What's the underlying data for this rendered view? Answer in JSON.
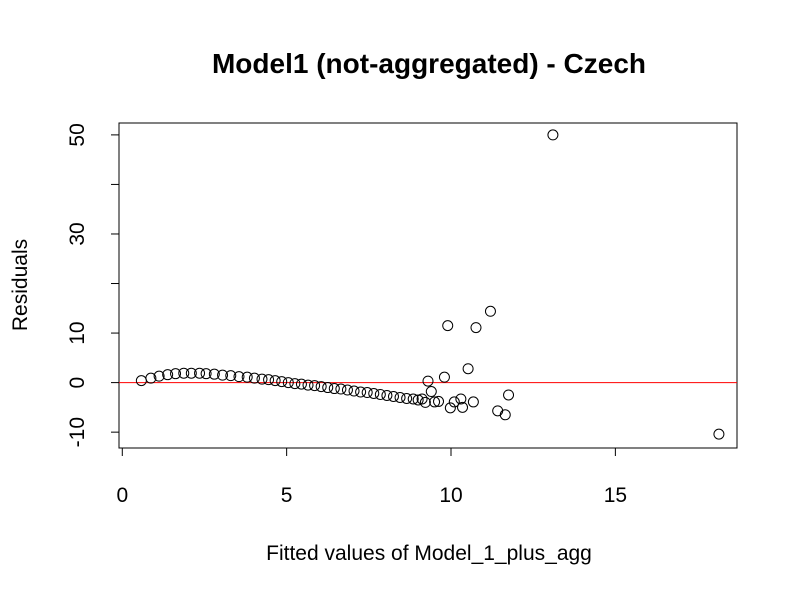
{
  "chart_data": {
    "type": "scatter",
    "title": "Model1 (not-aggregated) - Czech",
    "xlabel": "Fitted values of Model_1_plus_agg",
    "ylabel": "Residuals",
    "xlim": [
      -0.1,
      18.7
    ],
    "ylim": [
      -13.2,
      52.4
    ],
    "x_ticks": [
      0,
      5,
      10,
      15
    ],
    "x_tick_labels": [
      "0",
      "5",
      "10",
      "15"
    ],
    "y_ticks": [
      -10,
      0,
      10,
      20,
      30,
      40,
      50
    ],
    "y_tick_labels": [
      "-10",
      "0",
      "10",
      "",
      "30",
      "",
      "50"
    ],
    "grid": false,
    "reference_line": {
      "y": 0,
      "color": "#ff0000"
    },
    "point_color": "#000000",
    "points": [
      {
        "x": 0.58,
        "y": 0.4
      },
      {
        "x": 0.87,
        "y": 0.9
      },
      {
        "x": 1.12,
        "y": 1.3
      },
      {
        "x": 1.38,
        "y": 1.6
      },
      {
        "x": 1.62,
        "y": 1.8
      },
      {
        "x": 1.87,
        "y": 1.9
      },
      {
        "x": 2.1,
        "y": 1.9
      },
      {
        "x": 2.35,
        "y": 1.9
      },
      {
        "x": 2.55,
        "y": 1.8
      },
      {
        "x": 2.8,
        "y": 1.7
      },
      {
        "x": 3.05,
        "y": 1.5
      },
      {
        "x": 3.3,
        "y": 1.4
      },
      {
        "x": 3.55,
        "y": 1.2
      },
      {
        "x": 3.8,
        "y": 1.1
      },
      {
        "x": 4.02,
        "y": 0.9
      },
      {
        "x": 4.25,
        "y": 0.7
      },
      {
        "x": 4.45,
        "y": 0.6
      },
      {
        "x": 4.65,
        "y": 0.4
      },
      {
        "x": 4.85,
        "y": 0.2
      },
      {
        "x": 5.05,
        "y": 0.0
      },
      {
        "x": 5.25,
        "y": -0.2
      },
      {
        "x": 5.45,
        "y": -0.3
      },
      {
        "x": 5.65,
        "y": -0.5
      },
      {
        "x": 5.85,
        "y": -0.6
      },
      {
        "x": 6.05,
        "y": -0.8
      },
      {
        "x": 6.25,
        "y": -1.0
      },
      {
        "x": 6.45,
        "y": -1.2
      },
      {
        "x": 6.65,
        "y": -1.3
      },
      {
        "x": 6.85,
        "y": -1.5
      },
      {
        "x": 7.05,
        "y": -1.7
      },
      {
        "x": 7.25,
        "y": -1.9
      },
      {
        "x": 7.45,
        "y": -2.0
      },
      {
        "x": 7.65,
        "y": -2.2
      },
      {
        "x": 7.85,
        "y": -2.4
      },
      {
        "x": 8.05,
        "y": -2.6
      },
      {
        "x": 8.25,
        "y": -2.8
      },
      {
        "x": 8.45,
        "y": -3.0
      },
      {
        "x": 8.65,
        "y": -3.2
      },
      {
        "x": 8.85,
        "y": -3.3
      },
      {
        "x": 9.0,
        "y": -3.5
      },
      {
        "x": 9.12,
        "y": -3.3
      },
      {
        "x": 9.22,
        "y": -4.0
      },
      {
        "x": 9.3,
        "y": 0.3
      },
      {
        "x": 9.4,
        "y": -1.8
      },
      {
        "x": 9.5,
        "y": -3.9
      },
      {
        "x": 9.62,
        "y": -3.8
      },
      {
        "x": 9.8,
        "y": 1.1
      },
      {
        "x": 9.9,
        "y": 11.5
      },
      {
        "x": 9.98,
        "y": -5.1
      },
      {
        "x": 10.1,
        "y": -3.9
      },
      {
        "x": 10.3,
        "y": -3.3
      },
      {
        "x": 10.35,
        "y": -5.0
      },
      {
        "x": 10.52,
        "y": 2.8
      },
      {
        "x": 10.68,
        "y": -3.9
      },
      {
        "x": 10.76,
        "y": 11.1
      },
      {
        "x": 11.2,
        "y": 14.4
      },
      {
        "x": 11.42,
        "y": -5.7
      },
      {
        "x": 11.65,
        "y": -6.5
      },
      {
        "x": 11.75,
        "y": -2.5
      },
      {
        "x": 13.1,
        "y": 50.0
      },
      {
        "x": 18.15,
        "y": -10.4
      }
    ]
  }
}
